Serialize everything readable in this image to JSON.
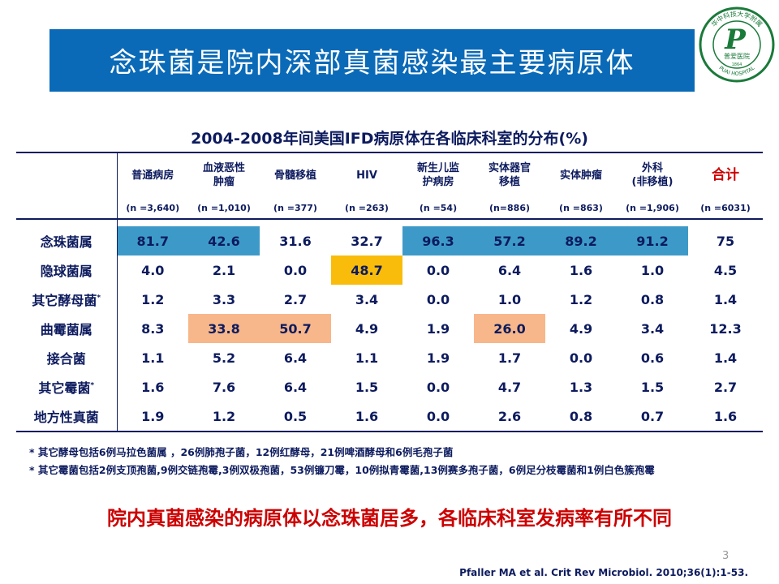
{
  "title": "念珠菌是院内深部真菌感染最主要病原体",
  "logo": {
    "text_top": "华中科技大学附属",
    "text_main": "普爱医院",
    "letter": "P",
    "text_bottom": "PUAI HOSPITAL",
    "year": "1864"
  },
  "table_title": "2004-2008年间美国IFD病原体在各临床科室的分布(%)",
  "table": {
    "headers": [
      {
        "line1": "普通病房",
        "line2": ""
      },
      {
        "line1": "血液恶性",
        "line2": "肿瘤"
      },
      {
        "line1": "骨髓移植",
        "line2": ""
      },
      {
        "line1": "HIV",
        "line2": ""
      },
      {
        "line1": "新生儿监",
        "line2": "护病房"
      },
      {
        "line1": "实体器官",
        "line2": "移植"
      },
      {
        "line1": "实体肿瘤",
        "line2": ""
      },
      {
        "line1": "外科",
        "line2": "(非移植)"
      },
      {
        "line1": "合计",
        "line2": ""
      }
    ],
    "n_values": [
      "(n =3,640)",
      "(n =1,010)",
      "(n =377)",
      "(n =263)",
      "(n =54)",
      "(n=886)",
      "(n =863)",
      "(n =1,906)",
      "(n =6031)"
    ],
    "rows": [
      {
        "genus": "念珠菌属",
        "values": [
          "81.7",
          "42.6",
          "31.6",
          "32.7",
          "96.3",
          "57.2",
          "89.2",
          "91.2",
          "75"
        ]
      },
      {
        "genus": "隐球菌属",
        "values": [
          "4.0",
          "2.1",
          "0.0",
          "48.7",
          "0.0",
          "6.4",
          "1.6",
          "1.0",
          "4.5"
        ]
      },
      {
        "genus": "其它酵母菌",
        "mark": "*",
        "values": [
          "1.2",
          "3.3",
          "2.7",
          "3.4",
          "0.0",
          "1.0",
          "1.2",
          "0.8",
          "1.4"
        ]
      },
      {
        "genus": "曲霉菌属",
        "values": [
          "8.3",
          "33.8",
          "50.7",
          "4.9",
          "1.9",
          "26.0",
          "4.9",
          "3.4",
          "12.3"
        ]
      },
      {
        "genus": "接合菌",
        "values": [
          "1.1",
          "5.2",
          "6.4",
          "1.1",
          "1.9",
          "1.7",
          "0.0",
          "0.6",
          "1.4"
        ]
      },
      {
        "genus": "其它霉菌",
        "mark": "*",
        "values": [
          "1.6",
          "7.6",
          "6.4",
          "1.5",
          "0.0",
          "4.7",
          "1.3",
          "1.5",
          "2.7"
        ]
      },
      {
        "genus": "地方性真菌",
        "values": [
          "1.9",
          "1.2",
          "0.5",
          "1.6",
          "0.0",
          "2.6",
          "0.8",
          "0.7",
          "1.6"
        ]
      }
    ]
  },
  "colors": {
    "highlight_blue": "#3d9ac8",
    "highlight_yellow": "#f9bc0a",
    "highlight_peach": "#f8b78a",
    "banner": "#0a6ab8",
    "emphasis_red": "#cc0000"
  },
  "footnotes": [
    "* 其它酵母包括6例马拉色菌属 ，26例肺孢子菌，12例红酵母，21例啤酒酵母和6例毛孢子菌",
    "* 其它霉菌包括2例支顶孢菌,9例交链孢霉,3例双极孢菌，53例镰刀霉，10例拟青霉菌,13例赛多孢子菌，6例足分枝霉菌和1例白色簇孢霉"
  ],
  "conclusion": "院内真菌感染的病原体以念珠菌居多，各临床科室发病率有所不同",
  "page_number": "3",
  "citation": "Pfaller MA et al. Crit Rev Microbiol. 2010;36(1):1-53."
}
